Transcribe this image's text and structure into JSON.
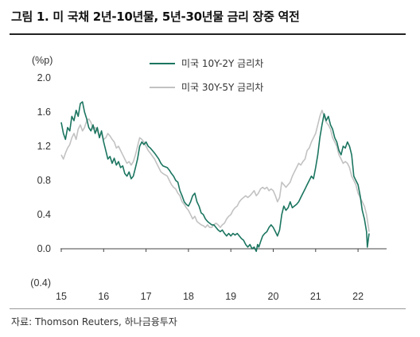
{
  "title": "그림 1. 미 국채 2년-10년물, 5년-30년물 금리 장중 역전",
  "source": "자료: Thomson Reuters, 하나금융투자",
  "chart_data": {
    "type": "line",
    "unit_label": "(%p)",
    "ylim": [
      -0.4,
      2.0
    ],
    "y_ticks": [
      -0.4,
      0.0,
      0.4,
      0.8,
      1.2,
      1.6,
      2.0
    ],
    "y_tick_labels": [
      "(0.4)",
      "0.0",
      "0.4",
      "0.8",
      "1.2",
      "1.6",
      "2.0"
    ],
    "xlim": [
      15,
      22.6
    ],
    "x_ticks": [
      15,
      16,
      17,
      18,
      19,
      20,
      21,
      22
    ],
    "x_tick_labels": [
      "15",
      "16",
      "17",
      "18",
      "19",
      "20",
      "21",
      "22"
    ],
    "grid": false,
    "legend_position": "top",
    "series": [
      {
        "name": "미국 10Y-2Y 금리차",
        "color": "#1b7560",
        "points": [
          [
            15.0,
            1.48
          ],
          [
            15.05,
            1.35
          ],
          [
            15.1,
            1.28
          ],
          [
            15.15,
            1.42
          ],
          [
            15.2,
            1.38
          ],
          [
            15.25,
            1.55
          ],
          [
            15.3,
            1.5
          ],
          [
            15.35,
            1.62
          ],
          [
            15.4,
            1.55
          ],
          [
            15.45,
            1.7
          ],
          [
            15.5,
            1.72
          ],
          [
            15.55,
            1.6
          ],
          [
            15.6,
            1.52
          ],
          [
            15.65,
            1.42
          ],
          [
            15.7,
            1.38
          ],
          [
            15.75,
            1.45
          ],
          [
            15.8,
            1.35
          ],
          [
            15.85,
            1.42
          ],
          [
            15.9,
            1.3
          ],
          [
            15.95,
            1.38
          ],
          [
            16.0,
            1.25
          ],
          [
            16.05,
            1.15
          ],
          [
            16.1,
            1.05
          ],
          [
            16.15,
            1.08
          ],
          [
            16.2,
            1.0
          ],
          [
            16.25,
            1.06
          ],
          [
            16.3,
            0.98
          ],
          [
            16.35,
            1.02
          ],
          [
            16.4,
            0.95
          ],
          [
            16.45,
            0.97
          ],
          [
            16.5,
            0.88
          ],
          [
            16.55,
            0.85
          ],
          [
            16.6,
            0.9
          ],
          [
            16.65,
            0.82
          ],
          [
            16.7,
            0.85
          ],
          [
            16.75,
            0.95
          ],
          [
            16.8,
            1.05
          ],
          [
            16.85,
            1.2
          ],
          [
            16.9,
            1.25
          ],
          [
            16.95,
            1.22
          ],
          [
            17.0,
            1.25
          ],
          [
            17.05,
            1.2
          ],
          [
            17.1,
            1.18
          ],
          [
            17.15,
            1.15
          ],
          [
            17.2,
            1.12
          ],
          [
            17.3,
            1.05
          ],
          [
            17.35,
            1.0
          ],
          [
            17.4,
            0.97
          ],
          [
            17.5,
            0.95
          ],
          [
            17.55,
            0.92
          ],
          [
            17.6,
            0.88
          ],
          [
            17.65,
            0.85
          ],
          [
            17.7,
            0.8
          ],
          [
            17.75,
            0.78
          ],
          [
            17.8,
            0.68
          ],
          [
            17.85,
            0.62
          ],
          [
            17.9,
            0.55
          ],
          [
            17.95,
            0.52
          ],
          [
            18.0,
            0.5
          ],
          [
            18.05,
            0.55
          ],
          [
            18.1,
            0.62
          ],
          [
            18.15,
            0.65
          ],
          [
            18.2,
            0.55
          ],
          [
            18.25,
            0.5
          ],
          [
            18.3,
            0.42
          ],
          [
            18.35,
            0.4
          ],
          [
            18.4,
            0.35
          ],
          [
            18.45,
            0.32
          ],
          [
            18.5,
            0.3
          ],
          [
            18.55,
            0.28
          ],
          [
            18.6,
            0.28
          ],
          [
            18.65,
            0.25
          ],
          [
            18.7,
            0.22
          ],
          [
            18.75,
            0.2
          ],
          [
            18.8,
            0.22
          ],
          [
            18.85,
            0.18
          ],
          [
            18.9,
            0.15
          ],
          [
            18.95,
            0.18
          ],
          [
            19.0,
            0.15
          ],
          [
            19.05,
            0.18
          ],
          [
            19.1,
            0.16
          ],
          [
            19.15,
            0.18
          ],
          [
            19.2,
            0.15
          ],
          [
            19.25,
            0.12
          ],
          [
            19.3,
            0.1
          ],
          [
            19.35,
            0.05
          ],
          [
            19.4,
            0.02
          ],
          [
            19.45,
            0.05
          ],
          [
            19.5,
            0.0
          ],
          [
            19.55,
            0.02
          ],
          [
            19.6,
            -0.03
          ],
          [
            19.63,
            0.05
          ],
          [
            19.66,
            0.02
          ],
          [
            19.7,
            0.08
          ],
          [
            19.75,
            0.15
          ],
          [
            19.8,
            0.18
          ],
          [
            19.85,
            0.2
          ],
          [
            19.9,
            0.25
          ],
          [
            19.95,
            0.28
          ],
          [
            20.0,
            0.25
          ],
          [
            20.05,
            0.2
          ],
          [
            20.1,
            0.15
          ],
          [
            20.15,
            0.22
          ],
          [
            20.2,
            0.4
          ],
          [
            20.25,
            0.5
          ],
          [
            20.3,
            0.45
          ],
          [
            20.35,
            0.48
          ],
          [
            20.4,
            0.55
          ],
          [
            20.45,
            0.48
          ],
          [
            20.5,
            0.5
          ],
          [
            20.55,
            0.52
          ],
          [
            20.6,
            0.55
          ],
          [
            20.65,
            0.6
          ],
          [
            20.7,
            0.65
          ],
          [
            20.75,
            0.7
          ],
          [
            20.8,
            0.75
          ],
          [
            20.85,
            0.8
          ],
          [
            20.9,
            0.85
          ],
          [
            20.95,
            0.82
          ],
          [
            21.0,
            0.95
          ],
          [
            21.05,
            1.1
          ],
          [
            21.1,
            1.3
          ],
          [
            21.15,
            1.45
          ],
          [
            21.2,
            1.58
          ],
          [
            21.25,
            1.5
          ],
          [
            21.3,
            1.55
          ],
          [
            21.35,
            1.45
          ],
          [
            21.4,
            1.4
          ],
          [
            21.45,
            1.3
          ],
          [
            21.5,
            1.25
          ],
          [
            21.55,
            1.15
          ],
          [
            21.6,
            1.1
          ],
          [
            21.65,
            1.2
          ],
          [
            21.7,
            1.18
          ],
          [
            21.75,
            1.25
          ],
          [
            21.8,
            1.2
          ],
          [
            21.85,
            1.1
          ],
          [
            21.9,
            0.85
          ],
          [
            21.95,
            0.8
          ],
          [
            22.0,
            0.75
          ],
          [
            22.05,
            0.62
          ],
          [
            22.1,
            0.45
          ],
          [
            22.15,
            0.35
          ],
          [
            22.2,
            0.2
          ],
          [
            22.22,
            0.02
          ],
          [
            22.24,
            0.1
          ],
          [
            22.26,
            0.18
          ]
        ]
      },
      {
        "name": "미국 30Y-5Y 금리차",
        "color": "#c2c2c2",
        "points": [
          [
            15.0,
            1.1
          ],
          [
            15.05,
            1.05
          ],
          [
            15.1,
            1.12
          ],
          [
            15.15,
            1.18
          ],
          [
            15.2,
            1.22
          ],
          [
            15.25,
            1.3
          ],
          [
            15.3,
            1.35
          ],
          [
            15.35,
            1.28
          ],
          [
            15.4,
            1.4
          ],
          [
            15.45,
            1.45
          ],
          [
            15.5,
            1.38
          ],
          [
            15.55,
            1.42
          ],
          [
            15.6,
            1.5
          ],
          [
            15.65,
            1.52
          ],
          [
            15.7,
            1.48
          ],
          [
            15.75,
            1.4
          ],
          [
            15.8,
            1.42
          ],
          [
            15.85,
            1.38
          ],
          [
            15.9,
            1.32
          ],
          [
            15.95,
            1.35
          ],
          [
            16.0,
            1.28
          ],
          [
            16.05,
            1.3
          ],
          [
            16.1,
            1.35
          ],
          [
            16.15,
            1.32
          ],
          [
            16.2,
            1.28
          ],
          [
            16.25,
            1.25
          ],
          [
            16.3,
            1.18
          ],
          [
            16.35,
            1.2
          ],
          [
            16.4,
            1.15
          ],
          [
            16.45,
            1.1
          ],
          [
            16.5,
            1.05
          ],
          [
            16.55,
            1.0
          ],
          [
            16.6,
            1.02
          ],
          [
            16.65,
            0.98
          ],
          [
            16.7,
            1.02
          ],
          [
            16.75,
            1.1
          ],
          [
            16.8,
            1.2
          ],
          [
            16.85,
            1.3
          ],
          [
            16.9,
            1.28
          ],
          [
            16.95,
            1.25
          ],
          [
            17.0,
            1.2
          ],
          [
            17.05,
            1.15
          ],
          [
            17.1,
            1.12
          ],
          [
            17.2,
            1.05
          ],
          [
            17.25,
            1.0
          ],
          [
            17.3,
            0.95
          ],
          [
            17.35,
            0.9
          ],
          [
            17.4,
            0.88
          ],
          [
            17.5,
            0.85
          ],
          [
            17.55,
            0.8
          ],
          [
            17.6,
            0.75
          ],
          [
            17.65,
            0.72
          ],
          [
            17.7,
            0.7
          ],
          [
            17.75,
            0.65
          ],
          [
            17.8,
            0.62
          ],
          [
            17.85,
            0.55
          ],
          [
            17.9,
            0.52
          ],
          [
            17.95,
            0.48
          ],
          [
            18.0,
            0.45
          ],
          [
            18.05,
            0.4
          ],
          [
            18.1,
            0.35
          ],
          [
            18.15,
            0.38
          ],
          [
            18.2,
            0.32
          ],
          [
            18.25,
            0.3
          ],
          [
            18.3,
            0.28
          ],
          [
            18.35,
            0.27
          ],
          [
            18.4,
            0.25
          ],
          [
            18.45,
            0.28
          ],
          [
            18.5,
            0.25
          ],
          [
            18.55,
            0.25
          ],
          [
            18.6,
            0.28
          ],
          [
            18.65,
            0.3
          ],
          [
            18.7,
            0.28
          ],
          [
            18.75,
            0.25
          ],
          [
            18.8,
            0.28
          ],
          [
            18.85,
            0.3
          ],
          [
            18.9,
            0.35
          ],
          [
            18.95,
            0.38
          ],
          [
            19.0,
            0.4
          ],
          [
            19.05,
            0.45
          ],
          [
            19.1,
            0.48
          ],
          [
            19.15,
            0.5
          ],
          [
            19.2,
            0.55
          ],
          [
            19.25,
            0.58
          ],
          [
            19.3,
            0.6
          ],
          [
            19.35,
            0.62
          ],
          [
            19.4,
            0.6
          ],
          [
            19.45,
            0.62
          ],
          [
            19.5,
            0.65
          ],
          [
            19.55,
            0.68
          ],
          [
            19.6,
            0.62
          ],
          [
            19.65,
            0.65
          ],
          [
            19.7,
            0.7
          ],
          [
            19.75,
            0.72
          ],
          [
            19.8,
            0.7
          ],
          [
            19.85,
            0.72
          ],
          [
            19.9,
            0.68
          ],
          [
            19.95,
            0.7
          ],
          [
            20.0,
            0.68
          ],
          [
            20.05,
            0.62
          ],
          [
            20.1,
            0.55
          ],
          [
            20.15,
            0.6
          ],
          [
            20.2,
            0.78
          ],
          [
            20.25,
            0.75
          ],
          [
            20.3,
            0.72
          ],
          [
            20.35,
            0.75
          ],
          [
            20.4,
            0.78
          ],
          [
            20.45,
            0.85
          ],
          [
            20.5,
            0.9
          ],
          [
            20.55,
            0.95
          ],
          [
            20.6,
            1.0
          ],
          [
            20.65,
            0.98
          ],
          [
            20.7,
            1.02
          ],
          [
            20.75,
            1.05
          ],
          [
            20.8,
            1.15
          ],
          [
            20.85,
            1.18
          ],
          [
            20.9,
            1.25
          ],
          [
            20.95,
            1.3
          ],
          [
            21.0,
            1.35
          ],
          [
            21.05,
            1.45
          ],
          [
            21.1,
            1.55
          ],
          [
            21.15,
            1.62
          ],
          [
            21.2,
            1.55
          ],
          [
            21.25,
            1.48
          ],
          [
            21.3,
            1.45
          ],
          [
            21.35,
            1.4
          ],
          [
            21.4,
            1.3
          ],
          [
            21.45,
            1.25
          ],
          [
            21.5,
            1.2
          ],
          [
            21.55,
            1.1
          ],
          [
            21.6,
            1.05
          ],
          [
            21.65,
            1.0
          ],
          [
            21.7,
            1.02
          ],
          [
            21.75,
            1.0
          ],
          [
            21.8,
            0.95
          ],
          [
            21.85,
            0.85
          ],
          [
            21.9,
            0.8
          ],
          [
            21.95,
            0.75
          ],
          [
            22.0,
            0.65
          ],
          [
            22.05,
            0.6
          ],
          [
            22.1,
            0.55
          ],
          [
            22.15,
            0.5
          ],
          [
            22.2,
            0.4
          ],
          [
            22.23,
            0.3
          ],
          [
            22.26,
            0.2
          ]
        ]
      }
    ]
  }
}
